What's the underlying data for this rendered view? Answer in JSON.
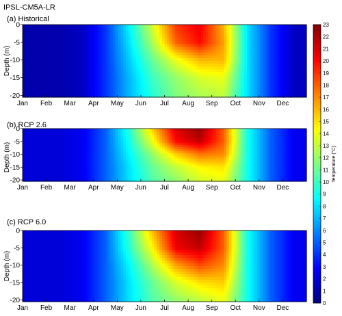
{
  "figure_title": "IPSL-CM5A-LR",
  "chart_data": {
    "type": "heatmap",
    "x_tick_labels": [
      "Jan",
      "Feb",
      "Mar",
      "Apr",
      "May",
      "Jun",
      "Jul",
      "Aug",
      "Sep",
      "Oct",
      "Nov",
      "Dec"
    ],
    "ylabel": "Depth (m)",
    "y_ticks": [
      0,
      -5,
      -10,
      -15,
      -20
    ],
    "ylim": [
      -20.5,
      0
    ],
    "colorbar": {
      "label": "Temperature (°C)",
      "min": 0,
      "max": 23,
      "ticks": [
        0,
        1,
        2,
        3,
        4,
        5,
        6,
        7,
        8,
        9,
        10,
        11,
        12,
        13,
        14,
        15,
        16,
        17,
        18,
        19,
        20,
        21,
        22,
        23
      ],
      "colormap": "jet"
    },
    "panels": [
      {
        "title": "(a) Historical",
        "months": [
          "Jan",
          "Feb",
          "Mar",
          "Apr",
          "May",
          "Jun",
          "Jul",
          "Aug",
          "Sep",
          "Oct",
          "Nov",
          "Dec"
        ],
        "depths": [
          0,
          -5,
          -10,
          -15,
          -20
        ],
        "temperature": [
          [
            1.0,
            1.0,
            1.5,
            4.0,
            8.5,
            13.5,
            19.0,
            20.5,
            16.0,
            8.0,
            4.0,
            1.5
          ],
          [
            1.0,
            1.0,
            1.5,
            4.0,
            8.0,
            12.5,
            18.0,
            20.0,
            16.5,
            8.0,
            4.0,
            1.5
          ],
          [
            1.0,
            1.0,
            1.5,
            4.0,
            7.5,
            11.0,
            14.0,
            16.0,
            16.0,
            8.0,
            4.0,
            1.5
          ],
          [
            1.0,
            1.0,
            1.5,
            4.0,
            7.0,
            10.0,
            12.0,
            13.5,
            14.0,
            8.0,
            4.0,
            1.5
          ],
          [
            1.0,
            1.0,
            1.5,
            4.0,
            7.0,
            9.5,
            11.5,
            12.5,
            13.0,
            8.0,
            4.0,
            1.5
          ]
        ]
      },
      {
        "title": "(b) RCP 2.6",
        "months": [
          "Jan",
          "Feb",
          "Mar",
          "Apr",
          "May",
          "Jun",
          "Jul",
          "Aug",
          "Sep",
          "Oct",
          "Nov",
          "Dec"
        ],
        "depths": [
          0,
          -5,
          -10,
          -15,
          -20
        ],
        "temperature": [
          [
            2.0,
            2.0,
            2.5,
            5.0,
            9.5,
            15.5,
            21.0,
            22.5,
            18.0,
            9.0,
            5.0,
            2.5
          ],
          [
            2.0,
            2.0,
            2.5,
            5.0,
            9.0,
            14.0,
            20.0,
            21.5,
            18.0,
            9.0,
            5.0,
            2.5
          ],
          [
            2.0,
            2.0,
            2.5,
            5.0,
            8.5,
            12.0,
            15.5,
            17.5,
            17.0,
            9.0,
            5.0,
            2.5
          ],
          [
            2.0,
            2.0,
            2.5,
            5.0,
            8.0,
            11.0,
            13.0,
            14.5,
            15.0,
            9.0,
            5.0,
            2.5
          ],
          [
            2.0,
            2.0,
            2.5,
            5.0,
            8.0,
            10.5,
            12.0,
            13.5,
            14.0,
            9.0,
            5.0,
            2.5
          ]
        ]
      },
      {
        "title": "(c) RCP 6.0",
        "months": [
          "Jan",
          "Feb",
          "Mar",
          "Apr",
          "May",
          "Jun",
          "Jul",
          "Aug",
          "Sep",
          "Oct",
          "Nov",
          "Dec"
        ],
        "depths": [
          0,
          -5,
          -10,
          -15,
          -20
        ],
        "temperature": [
          [
            2.0,
            2.0,
            2.5,
            5.0,
            10.0,
            16.0,
            21.0,
            22.5,
            18.0,
            9.0,
            5.0,
            2.5
          ],
          [
            2.0,
            2.0,
            2.5,
            5.0,
            9.5,
            14.5,
            20.5,
            21.5,
            18.0,
            9.0,
            5.0,
            2.5
          ],
          [
            2.0,
            2.0,
            2.5,
            5.0,
            8.5,
            12.5,
            16.5,
            18.5,
            17.0,
            9.0,
            5.0,
            2.5
          ],
          [
            2.0,
            2.0,
            2.5,
            5.0,
            8.0,
            11.0,
            13.5,
            15.0,
            15.5,
            9.0,
            5.0,
            2.5
          ],
          [
            2.0,
            2.0,
            2.5,
            5.0,
            8.0,
            10.5,
            12.0,
            13.0,
            14.0,
            9.0,
            5.0,
            2.5
          ]
        ]
      }
    ]
  }
}
